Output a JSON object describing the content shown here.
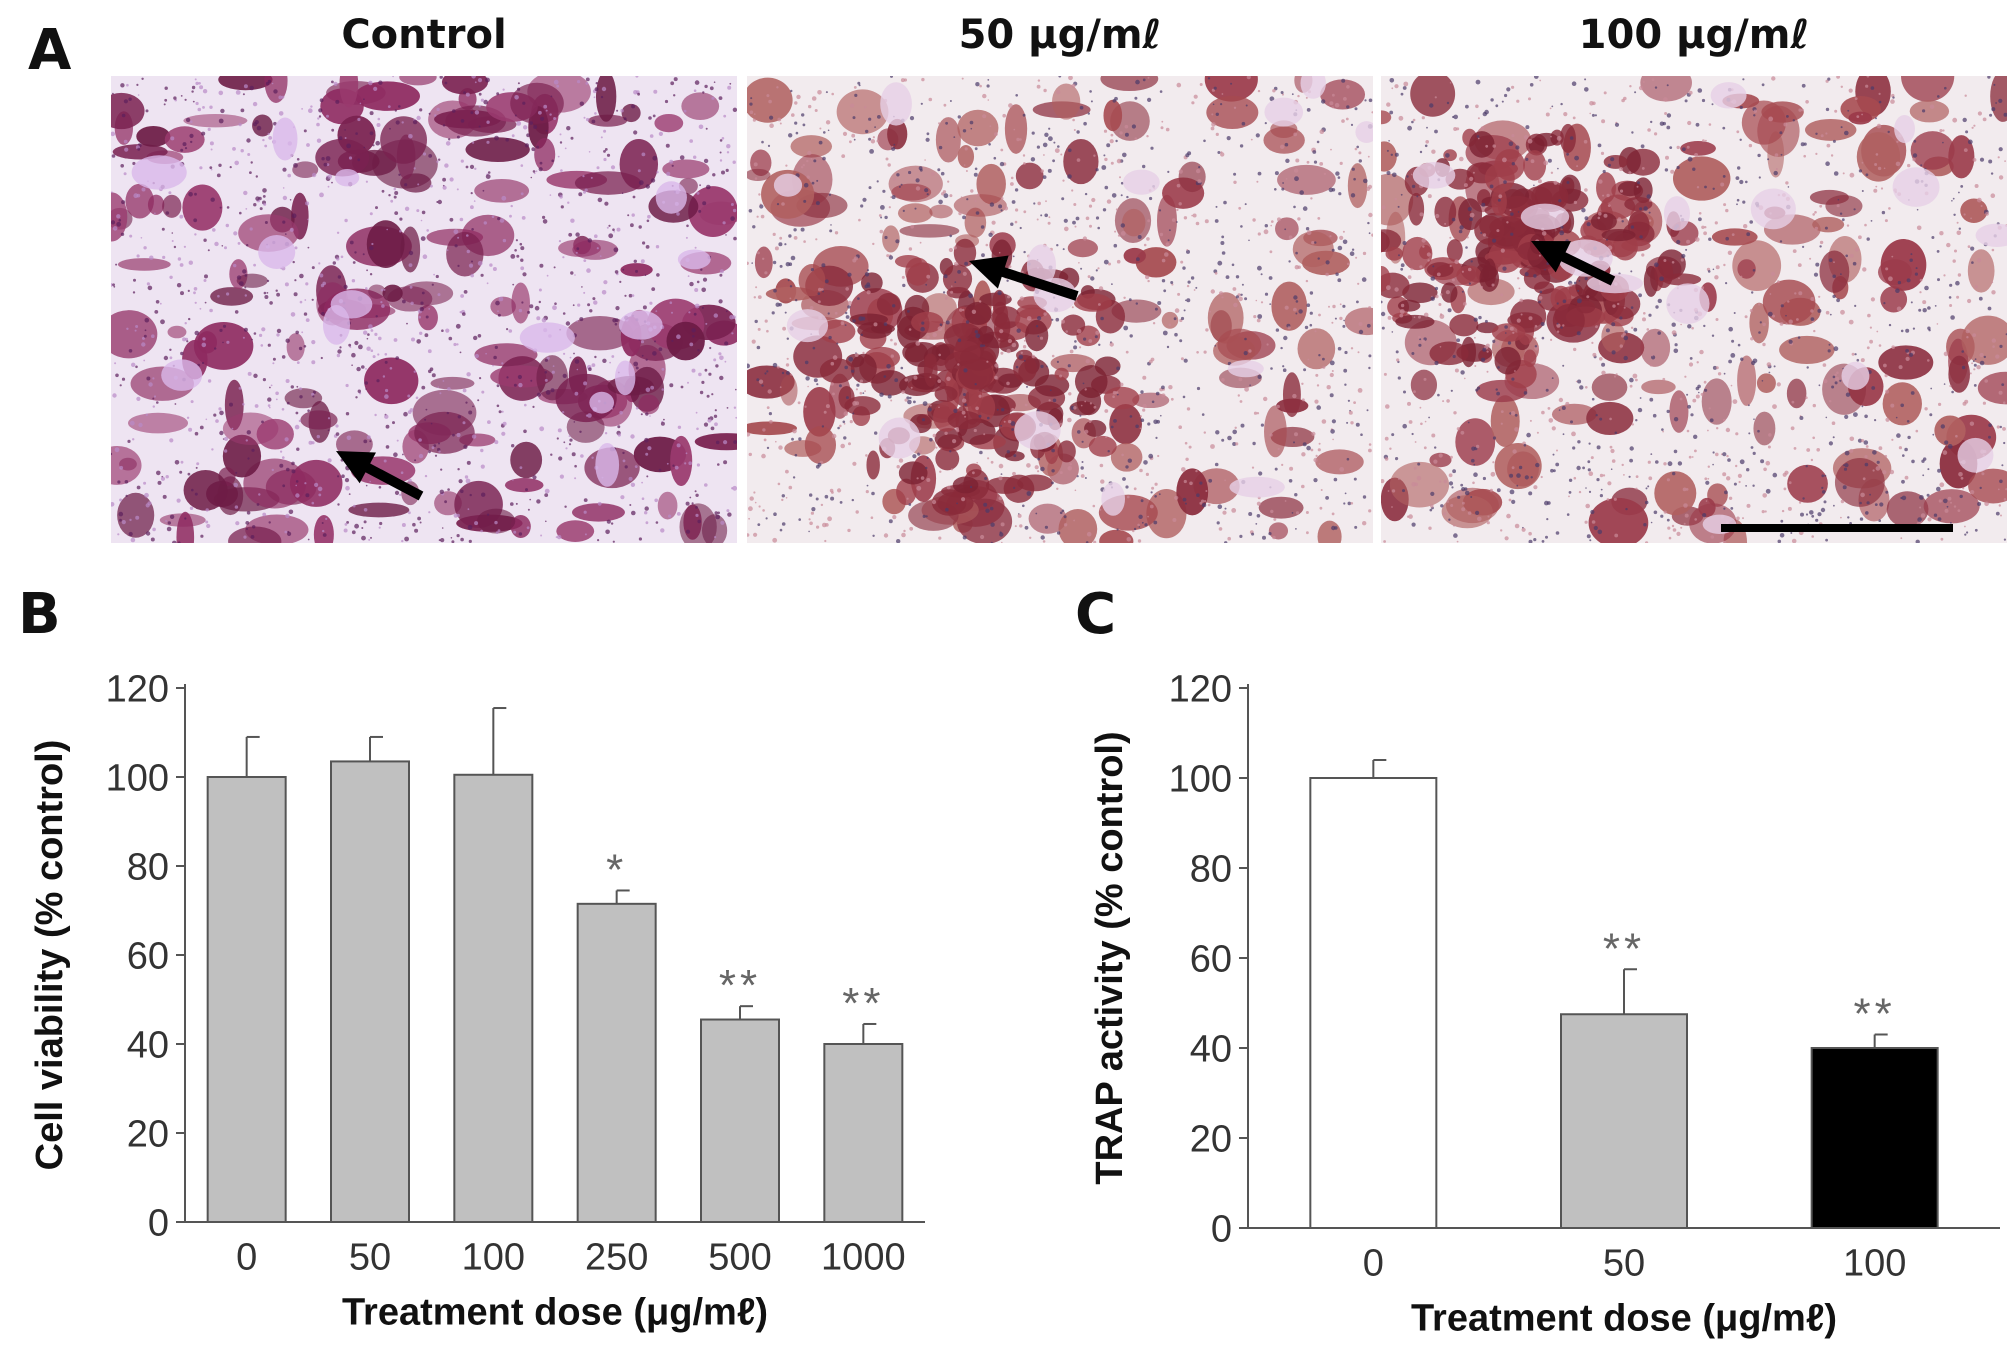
{
  "panel_a": {
    "letter": "A",
    "images": [
      {
        "label": "Control",
        "stain": "purple"
      },
      {
        "label": "50 μg/mℓ",
        "stain": "red"
      },
      {
        "label": "100 μg/mℓ",
        "stain": "red"
      }
    ]
  },
  "colors": {
    "bar_gray": "#c0c0c0",
    "bar_white": "#ffffff",
    "bar_black": "#000000",
    "axis": "#555555",
    "star": "#666666"
  },
  "chart_data": [
    {
      "panel": "B",
      "type": "bar",
      "categories": [
        "0",
        "50",
        "100",
        "250",
        "500",
        "1000"
      ],
      "values": [
        100,
        103.5,
        100.5,
        71.5,
        45.5,
        40
      ],
      "errors": [
        9,
        5.5,
        15,
        3,
        3,
        4.5
      ],
      "significance": [
        "",
        "",
        "",
        "*",
        "**",
        "**"
      ],
      "bar_colors": [
        "#c0c0c0",
        "#c0c0c0",
        "#c0c0c0",
        "#c0c0c0",
        "#c0c0c0",
        "#c0c0c0"
      ],
      "xlabel": "Treatment dose (μg/mℓ)",
      "ylabel": "Cell viability (% control)",
      "ylim": [
        0,
        120
      ],
      "yticks": [
        "0",
        "20",
        "40",
        "60",
        "80",
        "100",
        "120"
      ],
      "grid": false
    },
    {
      "panel": "C",
      "type": "bar",
      "categories": [
        "0",
        "50",
        "100"
      ],
      "values": [
        100,
        47.5,
        40
      ],
      "errors": [
        4,
        10,
        3
      ],
      "significance": [
        "",
        "**",
        "**"
      ],
      "bar_colors": [
        "#ffffff",
        "#c0c0c0",
        "#000000"
      ],
      "xlabel": "Treatment dose (μg/mℓ)",
      "ylabel": "TRAP activity (% control)",
      "ylim": [
        0,
        120
      ],
      "yticks": [
        "0",
        "20",
        "40",
        "60",
        "80",
        "100",
        "120"
      ],
      "grid": false
    }
  ]
}
